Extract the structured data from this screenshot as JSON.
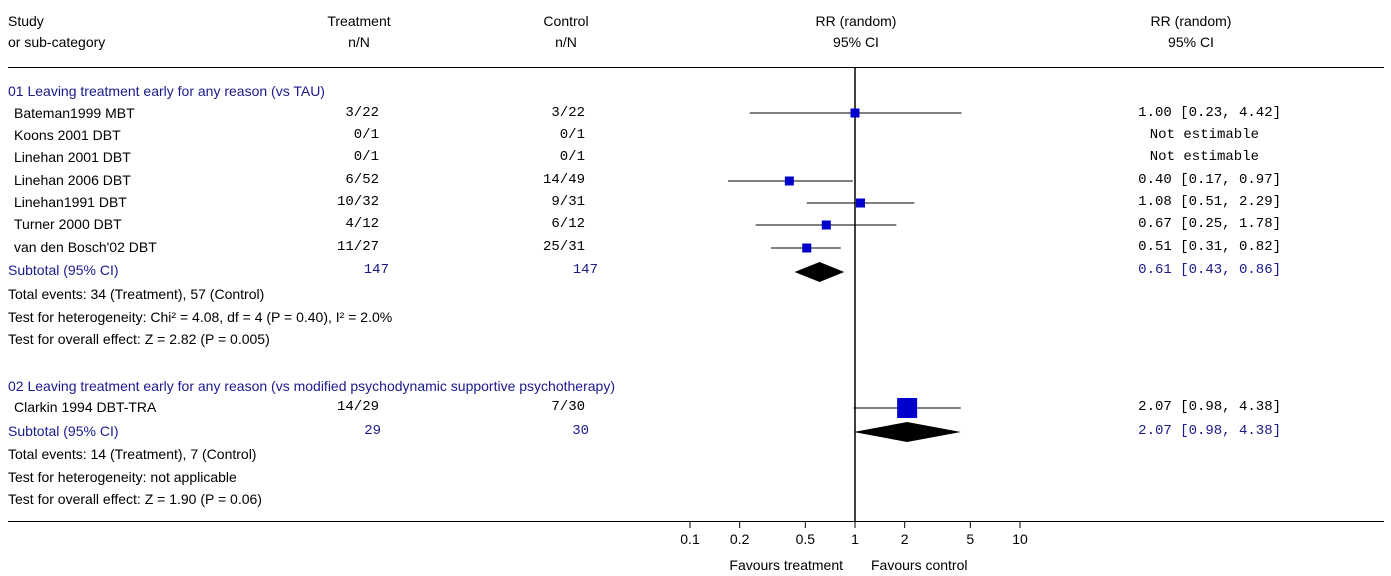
{
  "header": {
    "col1_line1": "Study",
    "col1_line2": "or sub-category",
    "col2_line1": "Treatment",
    "col2_line2": "n/N",
    "col3_line1": "Control",
    "col3_line2": "n/N",
    "col4_line1": "RR (random)",
    "col4_line2": "95% CI",
    "col5_line1": "RR (random)",
    "col5_line2": "95% CI"
  },
  "groups": [
    {
      "title": "01 Leaving treatment early for any reason (vs TAU)",
      "subtotal_label": "Subtotal (95% CI)",
      "subtotal_treatment": "147",
      "subtotal_control": "147",
      "subtotal_ci": "0.61 [0.43, 0.86]",
      "total_events": "Total events: 34 (Treatment), 57 (Control)",
      "heterogeneity": "Test for heterogeneity: Chi² = 4.08, df = 4 (P = 0.40), I² = 2.0%",
      "overall_effect": "Test for overall effect: Z = 2.82 (P = 0.005)"
    },
    {
      "title": "02 Leaving treatment early for any reason (vs modified psychodynamic supportive psychotherapy)",
      "subtotal_label": "Subtotal (95% CI)",
      "subtotal_treatment": "29",
      "subtotal_control": "30",
      "subtotal_ci": "2.07 [0.98, 4.38]",
      "total_events": "Total events: 14 (Treatment), 7 (Control)",
      "heterogeneity": "Test for heterogeneity: not applicable",
      "overall_effect": "Test for overall effect: Z = 1.90 (P = 0.06)"
    }
  ],
  "chart_data": {
    "type": "forest",
    "scale": "log",
    "x_ticks": [
      0.1,
      0.2,
      0.5,
      1,
      2,
      5,
      10
    ],
    "x_tick_labels": [
      "0.1",
      "0.2",
      "0.5",
      "1",
      "2",
      "5",
      "10"
    ],
    "xlim": [
      0.1,
      10
    ],
    "null_line": 1,
    "favours_left": "Favours treatment",
    "favours_right": "Favours control",
    "studies": [
      {
        "group": 0,
        "name": "Bateman1999 MBT",
        "treatment": "3/22",
        "control": "3/22",
        "rr": 1.0,
        "lo": 0.23,
        "hi": 4.42,
        "ci_text": "1.00 [0.23, 4.42]",
        "weight": "small"
      },
      {
        "group": 0,
        "name": "Koons 2001 DBT",
        "treatment": "0/1",
        "control": "0/1",
        "rr": null,
        "lo": null,
        "hi": null,
        "ci_text": "Not estimable"
      },
      {
        "group": 0,
        "name": "Linehan 2001 DBT",
        "treatment": "0/1",
        "control": "0/1",
        "rr": null,
        "lo": null,
        "hi": null,
        "ci_text": "Not estimable"
      },
      {
        "group": 0,
        "name": "Linehan 2006 DBT",
        "treatment": "6/52",
        "control": "14/49",
        "rr": 0.4,
        "lo": 0.17,
        "hi": 0.97,
        "ci_text": "0.40 [0.17, 0.97]",
        "weight": "small"
      },
      {
        "group": 0,
        "name": "Linehan1991 DBT",
        "treatment": "10/32",
        "control": "9/31",
        "rr": 1.08,
        "lo": 0.51,
        "hi": 2.29,
        "ci_text": "1.08 [0.51, 2.29]",
        "weight": "small"
      },
      {
        "group": 0,
        "name": "Turner 2000 DBT",
        "treatment": "4/12",
        "control": "6/12",
        "rr": 0.67,
        "lo": 0.25,
        "hi": 1.78,
        "ci_text": "0.67 [0.25, 1.78]",
        "weight": "small"
      },
      {
        "group": 0,
        "name": "van den Bosch'02 DBT",
        "treatment": "11/27",
        "control": "25/31",
        "rr": 0.51,
        "lo": 0.31,
        "hi": 0.82,
        "ci_text": "0.51 [0.31, 0.82]",
        "weight": "small"
      },
      {
        "group": 1,
        "name": "Clarkin 1994 DBT-TRA",
        "treatment": "14/29",
        "control": "7/30",
        "rr": 2.07,
        "lo": 0.98,
        "hi": 4.38,
        "ci_text": "2.07 [0.98, 4.38]",
        "weight": "large"
      }
    ],
    "subtotals": [
      {
        "group": 0,
        "rr": 0.61,
        "lo": 0.43,
        "hi": 0.86
      },
      {
        "group": 1,
        "rr": 2.07,
        "lo": 0.98,
        "hi": 4.38
      }
    ],
    "colors": {
      "marker": "#0000cc",
      "diamond": "#000000",
      "group_title": "#1a1a8c"
    }
  }
}
